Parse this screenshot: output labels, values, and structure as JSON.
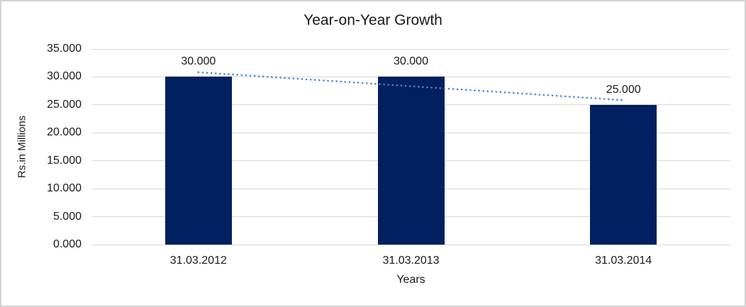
{
  "chart_data": {
    "type": "bar",
    "title": "Year-on-Year Growth",
    "xlabel": "Years",
    "ylabel": "Rs.in Millions",
    "categories": [
      "31.03.2012",
      "31.03.2013",
      "31.03.2014"
    ],
    "values": [
      30,
      30,
      25
    ],
    "data_labels": [
      "30.000",
      "30.000",
      "25.000"
    ],
    "units_note": "values formatted with 3-decimal style as shown on screen",
    "ylim": [
      0,
      35
    ],
    "y_tick_step": 5,
    "y_ticks": [
      {
        "value": 0,
        "label": "0.000"
      },
      {
        "value": 5,
        "label": "5.000"
      },
      {
        "value": 10,
        "label": "10.000"
      },
      {
        "value": 15,
        "label": "15.000"
      },
      {
        "value": 20,
        "label": "20.000"
      },
      {
        "value": 25,
        "label": "25.000"
      },
      {
        "value": 30,
        "label": "30.000"
      },
      {
        "value": 35,
        "label": "35.000"
      }
    ],
    "grid": true,
    "legend": "none",
    "trendline": {
      "type": "linear",
      "style": "dotted",
      "color": "#4A86C8"
    },
    "colors": {
      "bar": "#002060",
      "gridline": "#D9D9D9",
      "chart_border": "#D2D2D2",
      "text": "#1A1A1A",
      "background": "#FFFFFF"
    }
  }
}
